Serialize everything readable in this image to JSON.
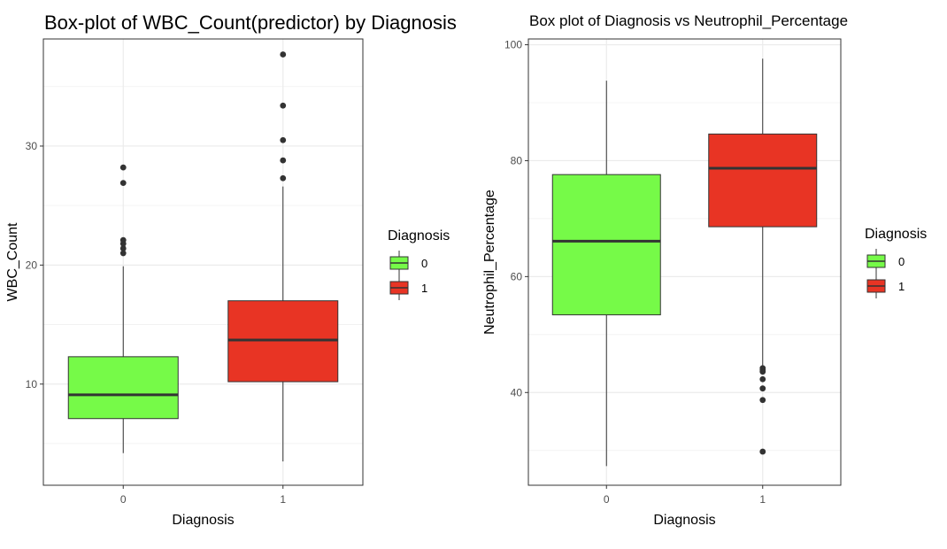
{
  "chart_data": [
    {
      "type": "box",
      "title": "Box-plot of WBC_Count(predictor) by Diagnosis",
      "xlabel": "Diagnosis",
      "ylabel": "WBC_Count",
      "categories": [
        "0",
        "1"
      ],
      "ylim": [
        1.5,
        39
      ],
      "yticks": [
        10,
        20,
        30
      ],
      "grid": true,
      "legend": {
        "title": "Diagnosis",
        "labels": [
          "0",
          "1"
        ],
        "position": "right"
      },
      "colors": [
        "#76fa48",
        "#e83424"
      ],
      "boxes": [
        {
          "category": "0",
          "whisker_low": 4.2,
          "q1": 7.1,
          "median": 9.1,
          "q3": 12.3,
          "whisker_high": 19.9,
          "outliers": [
            21.0,
            21.4,
            21.8,
            22.1,
            26.9,
            28.2
          ]
        },
        {
          "category": "1",
          "whisker_low": 3.5,
          "q1": 10.2,
          "median": 13.7,
          "q3": 17.0,
          "whisker_high": 26.6,
          "outliers": [
            27.3,
            28.8,
            30.5,
            33.4,
            37.7
          ]
        }
      ]
    },
    {
      "type": "box",
      "title": "Box plot of Diagnosis vs Neutrophil_Percentage",
      "xlabel": "Diagnosis",
      "ylabel": "Neutrophil_Percentage",
      "categories": [
        "0",
        "1"
      ],
      "ylim": [
        24,
        101
      ],
      "yticks": [
        40,
        60,
        80,
        100
      ],
      "grid": true,
      "legend": {
        "title": "Diagnosis",
        "labels": [
          "0",
          "1"
        ],
        "position": "right"
      },
      "colors": [
        "#76fa48",
        "#e83424"
      ],
      "boxes": [
        {
          "category": "0",
          "whisker_low": 27.3,
          "q1": 53.4,
          "median": 66.1,
          "q3": 77.6,
          "whisker_high": 93.8,
          "outliers": []
        },
        {
          "category": "1",
          "whisker_low": 44.7,
          "q1": 68.6,
          "median": 78.7,
          "q3": 84.6,
          "whisker_high": 97.6,
          "outliers": [
            29.8,
            38.7,
            40.7,
            42.3,
            43.6,
            43.9,
            44.2
          ]
        }
      ]
    }
  ]
}
